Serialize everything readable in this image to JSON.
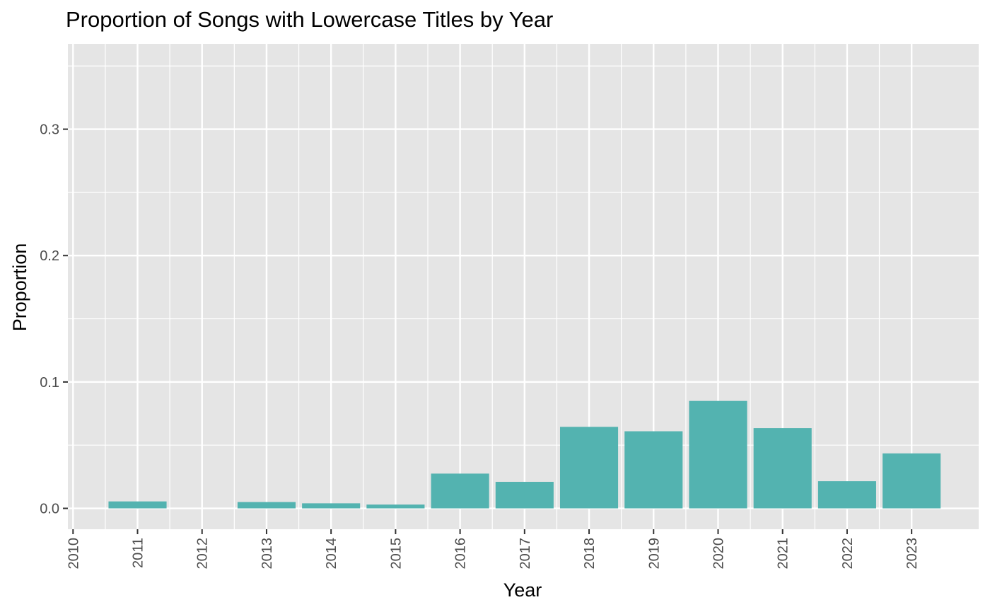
{
  "chart_data": {
    "type": "bar",
    "title": "Proportion of Songs with Lowercase Titles by Year",
    "xlabel": "Year",
    "ylabel": "Proportion",
    "x_ticks": [
      "2010",
      "2011",
      "2012",
      "2013",
      "2014",
      "2015",
      "2016",
      "2017",
      "2018",
      "2019",
      "2020",
      "2021",
      "2022",
      "2023"
    ],
    "y_ticks": [
      "0.0",
      "0.1",
      "0.2",
      "0.3"
    ],
    "categories": [
      "2011",
      "2012",
      "2013",
      "2014",
      "2015",
      "2016",
      "2017",
      "2018",
      "2019",
      "2020",
      "2021",
      "2022",
      "2023"
    ],
    "values": [
      0.0055,
      0.0,
      0.005,
      0.004,
      0.003,
      0.0275,
      0.021,
      0.0645,
      0.061,
      0.085,
      0.0635,
      0.0215,
      0.0435
    ],
    "ylim": [
      -0.0165,
      0.3675
    ],
    "xlim": [
      2009.92,
      2024.04
    ],
    "grid": true,
    "legend": "none",
    "colors": {
      "bar": "#53b3b0",
      "panel": "#e5e5e5",
      "grid": "#ffffff",
      "tick_text": "#4d4d4d"
    }
  }
}
